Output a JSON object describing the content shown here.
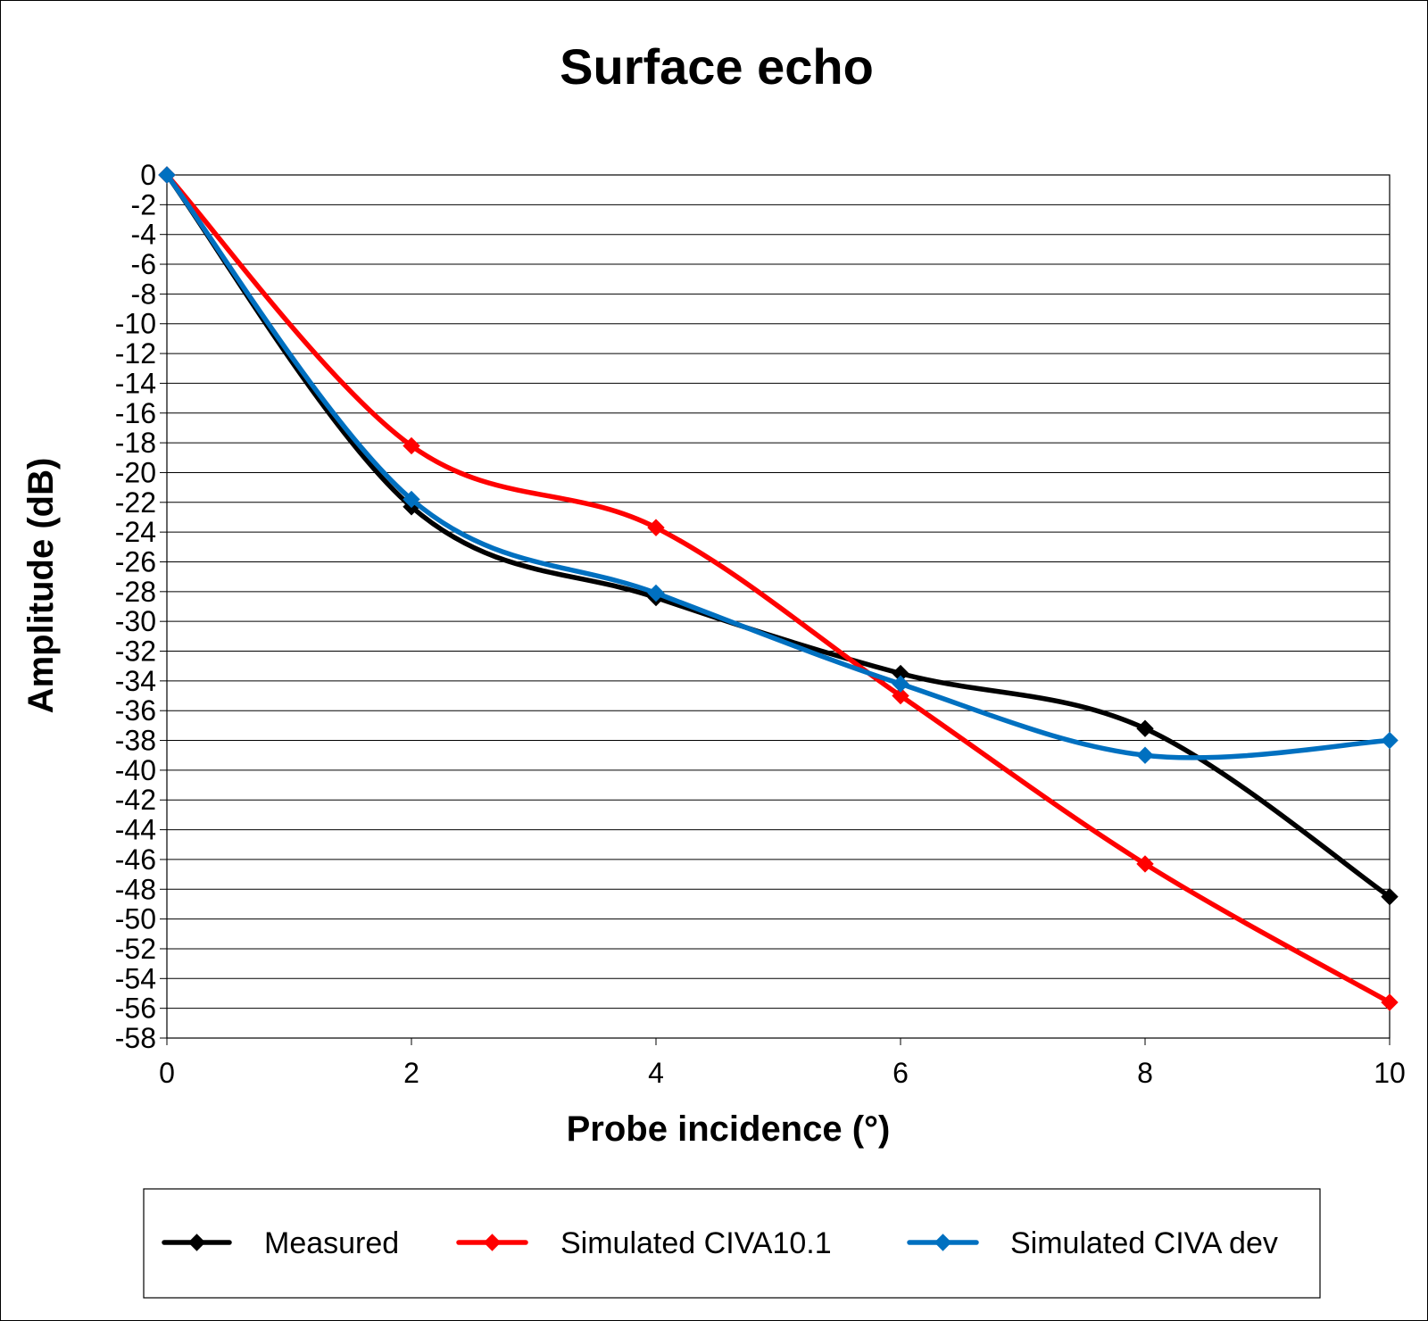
{
  "chart_data": {
    "type": "line",
    "title": "Surface echo",
    "xlabel": "Probe incidence (°)",
    "ylabel": "Amplitude (dB)",
    "x": [
      0,
      2,
      4,
      6,
      8,
      10
    ],
    "xlim": [
      0,
      10
    ],
    "ylim": [
      -58,
      0
    ],
    "x_ticks": [
      0,
      2,
      4,
      6,
      8,
      10
    ],
    "y_ticks": [
      0,
      -2,
      -4,
      -6,
      -8,
      -10,
      -12,
      -14,
      -16,
      -18,
      -20,
      -22,
      -24,
      -26,
      -28,
      -30,
      -32,
      -34,
      -36,
      -38,
      -40,
      -42,
      -44,
      -46,
      -48,
      -50,
      -52,
      -54,
      -56,
      -58
    ],
    "grid": "horizontal",
    "smoothed": true,
    "legend_position": "bottom",
    "series": [
      {
        "name": "Measured",
        "color": "#000000",
        "marker": "diamond",
        "values": [
          0,
          -22.3,
          -28.4,
          -33.5,
          -37.2,
          -48.5
        ]
      },
      {
        "name": "Simulated CIVA10.1",
        "color": "#ff0000",
        "marker": "diamond",
        "values": [
          0,
          -18.2,
          -23.7,
          -35,
          -46.3,
          -55.6
        ]
      },
      {
        "name": "Simulated CIVA dev",
        "color": "#0070c0",
        "marker": "diamond",
        "values": [
          0,
          -21.8,
          -28.1,
          -34.2,
          -39,
          -38
        ]
      }
    ]
  }
}
